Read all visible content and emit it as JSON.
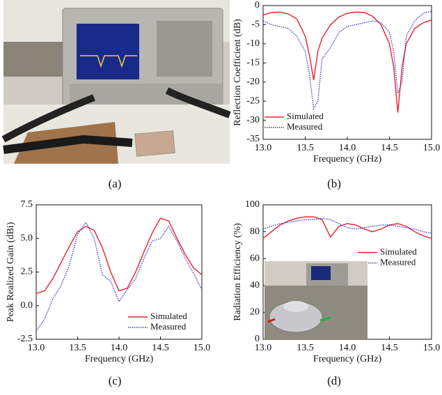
{
  "captions": [
    "(a)",
    "(b)",
    "(c)",
    "(d)"
  ],
  "chart_data": [
    {
      "type": "line",
      "xlabel": "Frequency (GHz)",
      "ylabel": "Reflection Coefficient (dB)",
      "x": [
        13.0,
        13.1,
        13.2,
        13.3,
        13.4,
        13.5,
        13.55,
        13.6,
        13.65,
        13.7,
        13.8,
        13.9,
        14.0,
        14.1,
        14.2,
        14.3,
        14.4,
        14.5,
        14.55,
        14.6,
        14.65,
        14.7,
        14.8,
        14.9,
        15.0
      ],
      "xlim": [
        13,
        15
      ],
      "xticks": [
        {
          "value": 13,
          "label": "13.0"
        },
        13.5,
        {
          "value": 14,
          "label": "14.0"
        },
        14.5,
        {
          "value": 15,
          "label": "15.0"
        }
      ],
      "ylim": [
        -35,
        0
      ],
      "yticks": [
        0,
        -5,
        -10,
        -15,
        -20,
        -25,
        -30,
        -35
      ],
      "legend": "lower left",
      "series": [
        {
          "name": "Simulated",
          "color": "#e8202a",
          "style": "solid",
          "values": [
            -2.5,
            -1.8,
            -1.7,
            -2.2,
            -3.5,
            -8,
            -13,
            -19.5,
            -12,
            -8.5,
            -5,
            -3,
            -2,
            -1.7,
            -1.8,
            -2.8,
            -5,
            -10,
            -16,
            -28,
            -16,
            -10,
            -6,
            -4.5,
            -3.8
          ]
        },
        {
          "name": "Measured",
          "color": "#3030d0",
          "style": "dotted",
          "values": [
            -4,
            -5,
            -5.5,
            -6,
            -8,
            -12,
            -18,
            -27,
            -25,
            -14,
            -11,
            -7,
            -5.5,
            -5,
            -4.5,
            -4,
            -4.5,
            -7,
            -12,
            -23,
            -20,
            -8,
            -4,
            -2,
            -1.5
          ]
        }
      ]
    },
    {
      "type": "line",
      "xlabel": "Frequency (GHz)",
      "ylabel": "Peak Realized Gain (dBi)",
      "x": [
        13.0,
        13.1,
        13.2,
        13.3,
        13.4,
        13.5,
        13.6,
        13.7,
        13.8,
        13.9,
        14.0,
        14.1,
        14.2,
        14.3,
        14.4,
        14.5,
        14.6,
        14.7,
        14.8,
        14.9,
        15.0
      ],
      "xlim": [
        13,
        15
      ],
      "xticks": [
        {
          "value": 13,
          "label": "13.0"
        },
        13.5,
        {
          "value": 14,
          "label": "14.0"
        },
        14.5,
        {
          "value": 15,
          "label": "15.0"
        }
      ],
      "ylim": [
        -2.5,
        7.5
      ],
      "yticks": [
        -2.5,
        {
          "value": 0,
          "label": "0.0"
        },
        2.5,
        {
          "value": 5,
          "label": "5.0"
        },
        7.5
      ],
      "legend": "lower right",
      "series": [
        {
          "name": "Simulated",
          "color": "#e8202a",
          "style": "solid",
          "values": [
            0.9,
            1.1,
            2.0,
            3.2,
            4.4,
            5.5,
            5.9,
            5.6,
            4.3,
            2.5,
            1.1,
            1.3,
            2.5,
            4.0,
            5.4,
            6.5,
            6.3,
            5.0,
            3.8,
            2.8,
            2.3
          ]
        },
        {
          "name": "Measured",
          "color": "#3030d0",
          "style": "dotted",
          "values": [
            -1.9,
            -1.0,
            0.5,
            1.5,
            3.0,
            5.3,
            6.2,
            5.0,
            2.3,
            1.8,
            0.3,
            1.2,
            2.0,
            3.5,
            4.8,
            5.0,
            5.9,
            4.8,
            3.5,
            2.4,
            1.2
          ]
        }
      ]
    },
    {
      "type": "line",
      "xlabel": "Frequency (GHz)",
      "ylabel": "Radiation Efficiency (%)",
      "x": [
        13.0,
        13.1,
        13.2,
        13.3,
        13.4,
        13.5,
        13.6,
        13.7,
        13.8,
        13.9,
        14.0,
        14.1,
        14.2,
        14.3,
        14.4,
        14.5,
        14.6,
        14.7,
        14.8,
        14.9,
        15.0
      ],
      "xlim": [
        13,
        15
      ],
      "xticks": [
        {
          "value": 13,
          "label": "13.0"
        },
        13.5,
        {
          "value": 14,
          "label": "14.0"
        },
        14.5,
        {
          "value": 15,
          "label": "15.0"
        }
      ],
      "ylim": [
        0,
        100
      ],
      "yticks": [
        0,
        20,
        40,
        60,
        80,
        100
      ],
      "legend": "center right",
      "series": [
        {
          "name": "Simulated",
          "color": "#e8202a",
          "style": "solid",
          "values": [
            75,
            80,
            85,
            88,
            90,
            91,
            91,
            89,
            76,
            84,
            86,
            85,
            82,
            80,
            82,
            85,
            86,
            84,
            80,
            77,
            75
          ]
        },
        {
          "name": "Measured",
          "color": "#3030d0",
          "style": "dotted",
          "values": [
            82,
            84,
            86,
            87,
            88,
            89,
            89,
            90,
            89,
            86,
            83,
            82,
            83,
            84,
            85,
            85,
            84,
            83,
            82,
            80,
            79
          ]
        }
      ]
    }
  ]
}
